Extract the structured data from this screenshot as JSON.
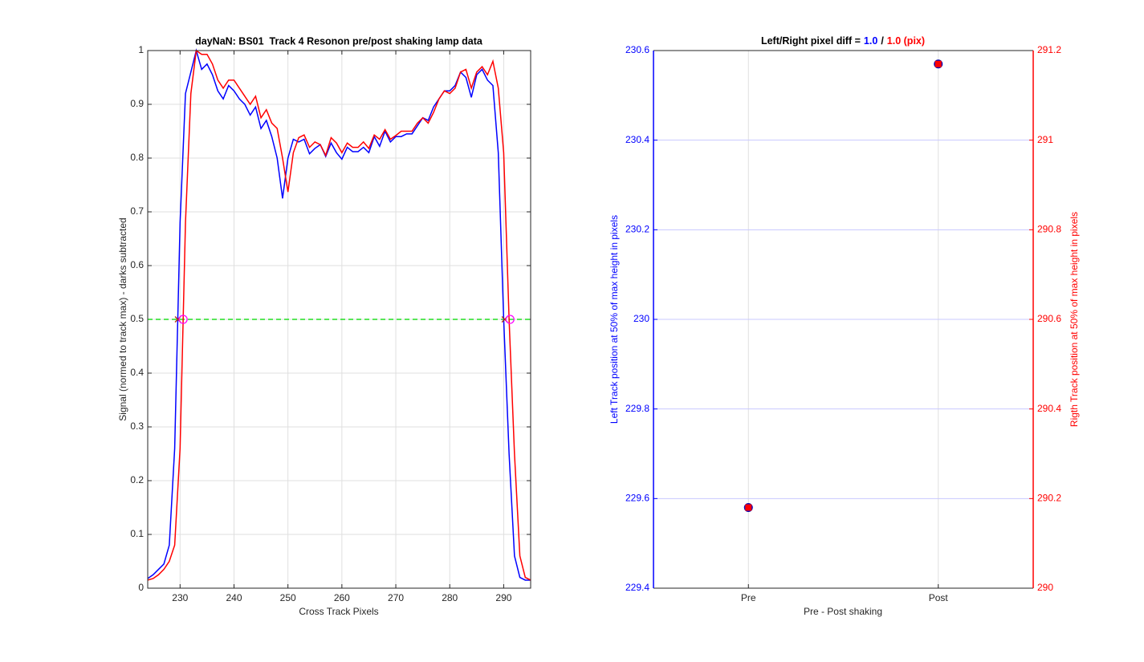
{
  "chart_data": [
    {
      "type": "line",
      "title": "dayNaN: BS01  Track 4 Resonon pre/post shaking lamp data",
      "xlabel": "Cross Track Pixels",
      "ylabel": "Signal (normed to track max) - darks subtracted",
      "x": [
        224,
        225,
        226,
        227,
        228,
        229,
        230,
        231,
        232,
        233,
        234,
        235,
        236,
        237,
        238,
        239,
        240,
        241,
        242,
        243,
        244,
        245,
        246,
        247,
        248,
        249,
        250,
        251,
        252,
        253,
        254,
        255,
        256,
        257,
        258,
        259,
        260,
        261,
        262,
        263,
        264,
        265,
        266,
        267,
        268,
        269,
        270,
        271,
        272,
        273,
        274,
        275,
        276,
        277,
        278,
        279,
        280,
        281,
        282,
        283,
        284,
        285,
        286,
        287,
        288,
        289,
        290,
        291,
        292,
        293,
        294,
        295
      ],
      "series": [
        {
          "color": "#0000ff",
          "values": [
            0.018,
            0.025,
            0.035,
            0.045,
            0.08,
            0.26,
            0.68,
            0.92,
            0.96,
            1.0,
            0.965,
            0.975,
            0.955,
            0.925,
            0.91,
            0.935,
            0.925,
            0.91,
            0.9,
            0.88,
            0.895,
            0.855,
            0.87,
            0.84,
            0.8,
            0.725,
            0.8,
            0.835,
            0.83,
            0.835,
            0.808,
            0.818,
            0.825,
            0.803,
            0.828,
            0.81,
            0.798,
            0.82,
            0.812,
            0.812,
            0.82,
            0.81,
            0.84,
            0.822,
            0.85,
            0.83,
            0.84,
            0.84,
            0.845,
            0.845,
            0.86,
            0.875,
            0.87,
            0.895,
            0.91,
            0.925,
            0.925,
            0.935,
            0.96,
            0.95,
            0.913,
            0.955,
            0.965,
            0.945,
            0.935,
            0.81,
            0.5,
            0.25,
            0.06,
            0.02,
            0.015,
            0.015
          ]
        },
        {
          "color": "#ff0000",
          "values": [
            0.015,
            0.018,
            0.025,
            0.035,
            0.05,
            0.08,
            0.26,
            0.68,
            0.92,
            1.0,
            0.993,
            0.993,
            0.975,
            0.945,
            0.93,
            0.945,
            0.945,
            0.93,
            0.915,
            0.9,
            0.915,
            0.875,
            0.89,
            0.865,
            0.855,
            0.8,
            0.737,
            0.81,
            0.838,
            0.843,
            0.82,
            0.83,
            0.825,
            0.805,
            0.838,
            0.828,
            0.81,
            0.828,
            0.82,
            0.82,
            0.83,
            0.818,
            0.843,
            0.835,
            0.853,
            0.835,
            0.842,
            0.85,
            0.85,
            0.85,
            0.865,
            0.875,
            0.865,
            0.885,
            0.91,
            0.925,
            0.92,
            0.93,
            0.96,
            0.965,
            0.93,
            0.96,
            0.97,
            0.955,
            0.98,
            0.93,
            0.81,
            0.5,
            0.25,
            0.06,
            0.02,
            0.015
          ]
        }
      ],
      "hline": {
        "value": 0.5,
        "color": "#22dd22"
      },
      "markers": [
        {
          "marker": "x",
          "color": "#b03010",
          "x": [
            229.58,
            290.18
          ],
          "y": [
            0.5,
            0.5
          ]
        },
        {
          "marker": "o",
          "color": "#ff00ff",
          "x": [
            230.57,
            291.17
          ],
          "y": [
            0.5,
            0.5
          ]
        }
      ],
      "xlim": [
        224,
        295
      ],
      "xticks": [
        230,
        240,
        250,
        260,
        270,
        280,
        290
      ],
      "ylim": [
        0,
        1
      ],
      "yticks": [
        0,
        0.1,
        0.2,
        0.3,
        0.4,
        0.5,
        0.6,
        0.7,
        0.8,
        0.9,
        1
      ],
      "grid": true
    },
    {
      "type": "scatter",
      "title": {
        "prefix": "Left/Right pixel diff =",
        "left": "1.0",
        "separator": "/",
        "right": "1.0 (pix)"
      },
      "xlabel": "Pre - Post shaking",
      "ylabel": "Left Track position at 50% of max height in pixels",
      "y2label": "Rigth Track position at 50% of max height in pixels",
      "categories": [
        "Pre",
        "Post"
      ],
      "series": [
        {
          "color": "#0000ff",
          "marker": "o",
          "values": [
            229.58,
            230.57
          ]
        },
        {
          "color": "#ff0000",
          "marker": "s",
          "axis": "y2",
          "values": [
            290.18,
            291.17
          ]
        }
      ],
      "ylim": [
        229.4,
        230.6
      ],
      "yticks": [
        229.4,
        229.6,
        229.8,
        230,
        230.2,
        230.4,
        230.6
      ],
      "y2lim": [
        290,
        291.2
      ],
      "y2ticks": [
        290,
        290.2,
        290.4,
        290.6,
        290.8,
        291,
        291.2
      ],
      "y_axis_color": "#0000ff",
      "y2_axis_color": "#ff0000",
      "grid": true,
      "grid_color": "#c8c8ff"
    }
  ]
}
